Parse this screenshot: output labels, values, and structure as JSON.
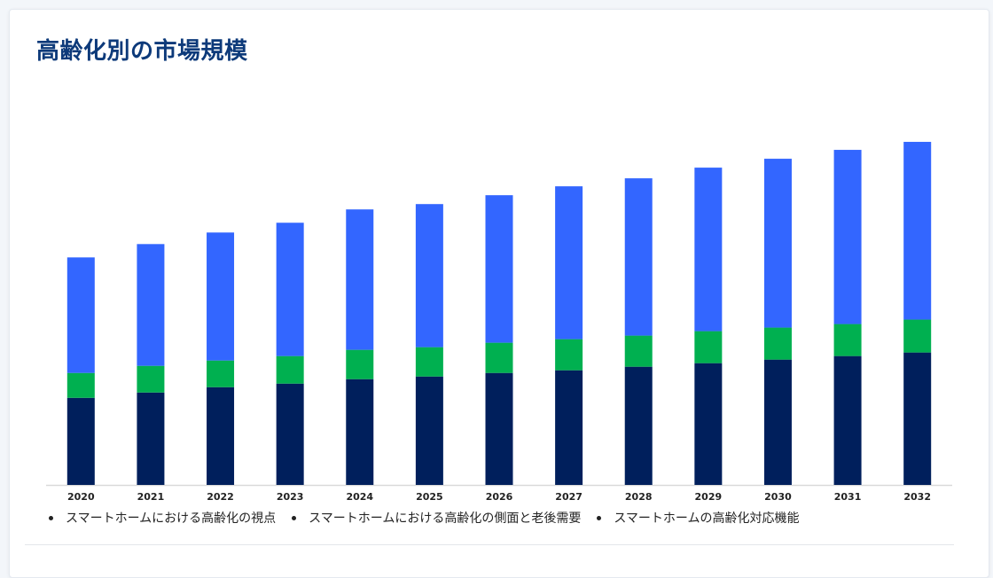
{
  "page": {
    "title": "高齢化別の市場規模"
  },
  "colors": {
    "series1": "#001f5c",
    "series2": "#00b050",
    "series3": "#3366ff",
    "axis": "#d9d9d9",
    "title": "#0d3a7a"
  },
  "legend": [
    "スマートホームにおける高齢化の視点",
    "スマートホームにおける高齢化の側面と老後需要",
    "スマートホームの高齢化対応機能"
  ],
  "chart_data": {
    "type": "bar",
    "stacked": true,
    "categories": [
      "2020",
      "2021",
      "2022",
      "2023",
      "2024",
      "2025",
      "2026",
      "2027",
      "2028",
      "2029",
      "2030",
      "2031",
      "2032"
    ],
    "series": [
      {
        "name": "スマートホームにおける高齢化の視点",
        "values": [
          98,
          104,
          110,
          114,
          119,
          122,
          126,
          129,
          133,
          137,
          141,
          145,
          149
        ]
      },
      {
        "name": "スマートホームにおける高齢化の側面と老後需要",
        "values": [
          28,
          30,
          30,
          31,
          33,
          33,
          34,
          35,
          35,
          36,
          36,
          36,
          37
        ]
      },
      {
        "name": "スマートホームの高齢化対応機能",
        "values": [
          130,
          137,
          144,
          150,
          158,
          161,
          166,
          172,
          177,
          184,
          190,
          196,
          200
        ]
      }
    ],
    "ylim": [
      0,
      400
    ],
    "xlabel": "",
    "ylabel": "",
    "grid": false,
    "legend_position": "bottom"
  }
}
